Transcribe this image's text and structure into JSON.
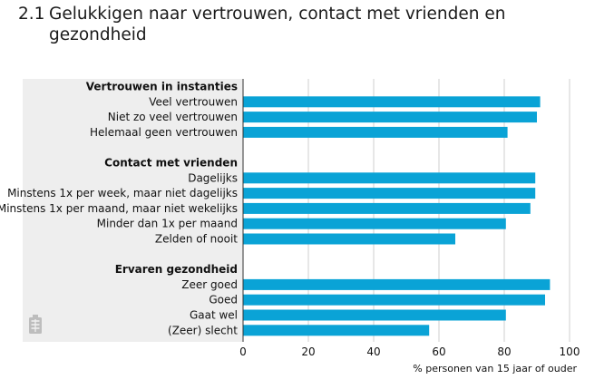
{
  "title": {
    "number": "2.1",
    "line1": "Gelukkigen naar vertrouwen, contact met vrienden en",
    "line2": "gezondheid"
  },
  "colors": {
    "bar": "#0aa3d6",
    "panel": "#eeeeee",
    "grid": "#cfcfcf",
    "axis": "#333333"
  },
  "chart_data": {
    "type": "bar",
    "orientation": "horizontal",
    "xlabel": "% personen van 15 jaar of ouder",
    "xlim": [
      0,
      100
    ],
    "xticks": [
      0,
      20,
      40,
      60,
      80,
      100
    ],
    "grid": true,
    "groups": [
      {
        "name": "Vertrouwen in instanties",
        "items": [
          {
            "label": "Veel vertrouwen",
            "value": 91
          },
          {
            "label": "Niet zo veel vertrouwen",
            "value": 90
          },
          {
            "label": "Helemaal geen vertrouwen",
            "value": 81
          }
        ]
      },
      {
        "name": "Contact met vrienden",
        "items": [
          {
            "label": "Dagelijks",
            "value": 89.5
          },
          {
            "label": "Minstens 1x per week, maar niet dagelijks",
            "value": 89.5
          },
          {
            "label": "Minstens 1x per maand, maar niet wekelijks",
            "value": 88
          },
          {
            "label": "Minder dan 1x per maand",
            "value": 80.5
          },
          {
            "label": "Zelden of nooit",
            "value": 65
          }
        ]
      },
      {
        "name": "Ervaren gezondheid",
        "items": [
          {
            "label": "Zeer goed",
            "value": 94
          },
          {
            "label": "Goed",
            "value": 92.5
          },
          {
            "label": "Gaat wel",
            "value": 80.5
          },
          {
            "label": "(Zeer) slecht",
            "value": 57
          }
        ]
      }
    ]
  }
}
